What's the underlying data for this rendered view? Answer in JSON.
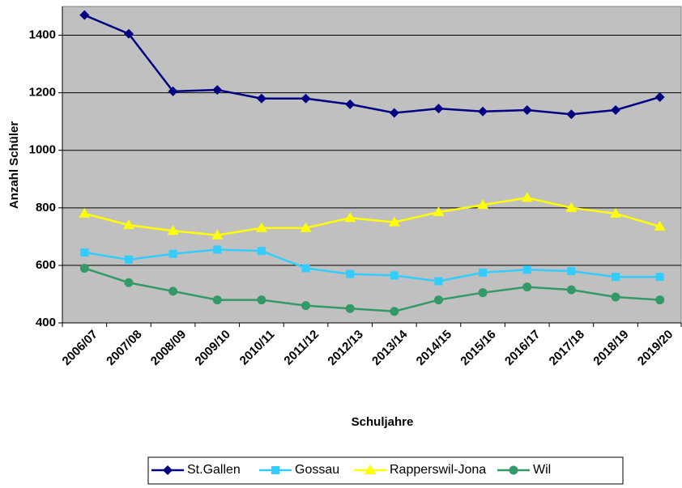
{
  "chart_data": {
    "type": "line",
    "x_label": "Schuljahre",
    "y_label": "Anzahl Schüler",
    "categories": [
      "2006/07",
      "2007/08",
      "2008/09",
      "2009/10",
      "2010/11",
      "2011/12",
      "2012/13",
      "2013/14",
      "2014/15",
      "2015/16",
      "2016/17",
      "2017/18",
      "2018/19",
      "2019/20"
    ],
    "series": [
      {
        "name": "St.Gallen",
        "color": "#000080",
        "marker": "diamond",
        "values": [
          1470,
          1405,
          1205,
          1210,
          1180,
          1180,
          1160,
          1130,
          1145,
          1135,
          1140,
          1125,
          1140,
          1185
        ]
      },
      {
        "name": "Gossau",
        "color": "#33ccff",
        "marker": "square",
        "values": [
          645,
          620,
          640,
          655,
          650,
          590,
          570,
          565,
          545,
          575,
          585,
          580,
          560,
          560
        ]
      },
      {
        "name": "Rapperswil-Jona",
        "color": "#ffff00",
        "marker": "triangle",
        "values": [
          780,
          740,
          720,
          705,
          730,
          730,
          765,
          750,
          785,
          810,
          835,
          800,
          780,
          735
        ]
      },
      {
        "name": "Wil",
        "color": "#339966",
        "marker": "circle",
        "values": [
          590,
          540,
          510,
          480,
          480,
          460,
          450,
          440,
          480,
          505,
          525,
          515,
          490,
          480
        ]
      }
    ],
    "ylim": [
      400,
      1500
    ],
    "yticks": [
      400,
      600,
      800,
      1000,
      1200,
      1400
    ],
    "grid": true,
    "plot_background": "#c0c0c0",
    "legend": "bottom"
  }
}
